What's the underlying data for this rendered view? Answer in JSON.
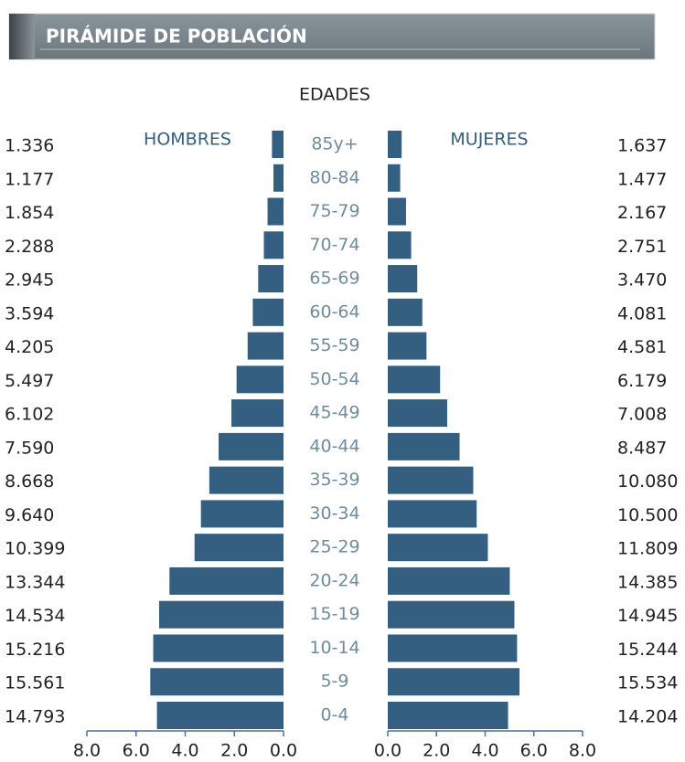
{
  "chart_data": {
    "type": "pyramid",
    "title": "PIRÁMIDE DE POBLACIÓN",
    "axis_title": "EDADES",
    "categories": [
      "85y+",
      "80-84",
      "75-79",
      "70-74",
      "65-69",
      "60-64",
      "55-59",
      "50-54",
      "45-49",
      "40-44",
      "35-39",
      "30-34",
      "25-29",
      "20-24",
      "15-19",
      "10-14",
      "5-9",
      "0-4"
    ],
    "series": [
      {
        "name": "HOMBRES",
        "color": "#355f80",
        "side": "left",
        "values": [
          0.47,
          0.41,
          0.65,
          0.8,
          1.03,
          1.25,
          1.46,
          1.91,
          2.12,
          2.64,
          3.02,
          3.36,
          3.62,
          4.64,
          5.06,
          5.3,
          5.42,
          5.15
        ],
        "counts": [
          "1.336",
          "1.177",
          "1.854",
          "2.288",
          "2.945",
          "3.594",
          "4.205",
          "5.497",
          "6.102",
          "7.590",
          "8.668",
          "9.640",
          "10.399",
          "13.344",
          "14.534",
          "15.216",
          "15.561",
          "14.793"
        ]
      },
      {
        "name": "MUJERES",
        "color": "#355f80",
        "side": "right",
        "values": [
          0.57,
          0.51,
          0.75,
          0.96,
          1.21,
          1.42,
          1.59,
          2.15,
          2.44,
          2.95,
          3.51,
          3.65,
          4.11,
          5.01,
          5.2,
          5.31,
          5.41,
          4.94
        ],
        "counts": [
          "1.637",
          "1.477",
          "2.167",
          "2.751",
          "3.470",
          "4.081",
          "4.581",
          "6.179",
          "7.008",
          "8.487",
          "10.080",
          "10.500",
          "11.809",
          "14.385",
          "14.945",
          "15.244",
          "15.534",
          "14.204"
        ]
      }
    ],
    "xlim": [
      0,
      8
    ],
    "xticks": [
      {
        "value": 0,
        "label": "0.0"
      },
      {
        "value": 2,
        "label": "2.0"
      },
      {
        "value": 4,
        "label": "4.0"
      },
      {
        "value": 6,
        "label": "6.0"
      },
      {
        "value": 8,
        "label": "8.0"
      }
    ]
  }
}
